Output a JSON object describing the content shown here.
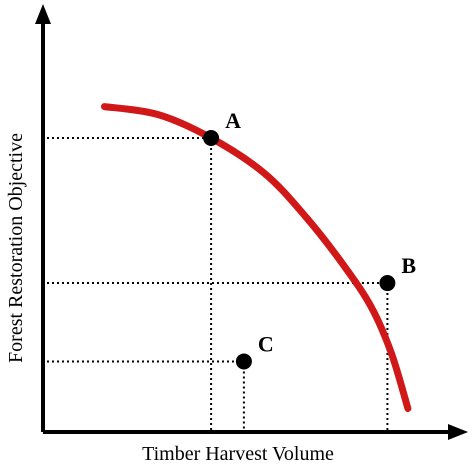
{
  "chart_data": {
    "type": "line",
    "title": "",
    "xlabel": "Timber Harvest Volume",
    "ylabel": "Forest Restoration Objective",
    "xlim": [
      0,
      10
    ],
    "ylim": [
      0,
      10
    ],
    "grid": false,
    "series": [
      {
        "kind": "curve",
        "color": "#d01818",
        "x": [
          1.5,
          2.8,
          4.1,
          5.4,
          6.4,
          7.3,
          8.0,
          8.5,
          8.9
        ],
        "y": [
          8.3,
          8.1,
          7.5,
          6.6,
          5.5,
          4.3,
          3.2,
          2.0,
          0.6
        ]
      }
    ],
    "points": [
      {
        "label": "A",
        "x": 4.1,
        "y": 7.5
      },
      {
        "label": "B",
        "x": 8.4,
        "y": 3.8
      },
      {
        "label": "C",
        "x": 4.9,
        "y": 1.8
      }
    ],
    "annotations": "dotted drop-lines from each point to both axes"
  }
}
